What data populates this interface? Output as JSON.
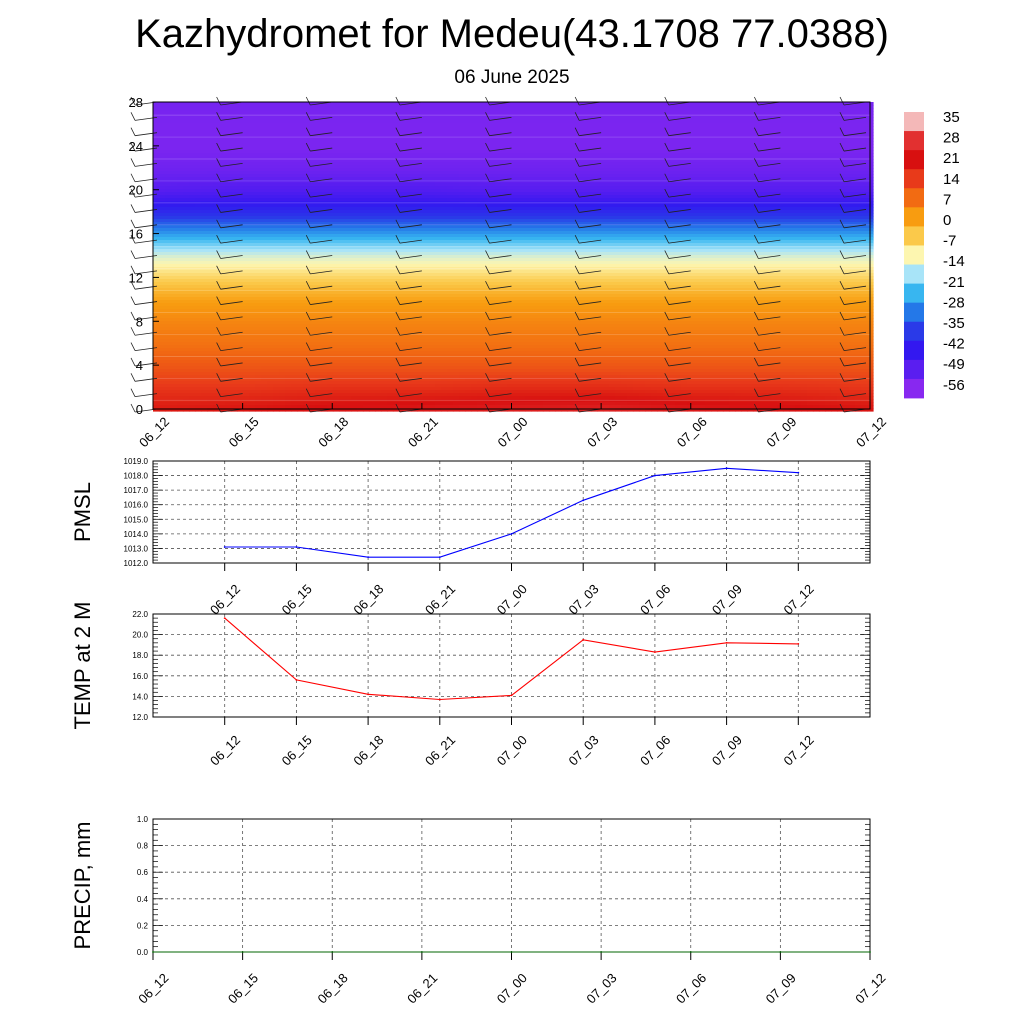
{
  "title": "Kazhydromet for Medeu(43.1708 77.0388)",
  "subtitle": "06 June 2025",
  "chart_data": [
    {
      "type": "heatmap",
      "name": "vertical-section",
      "x_categories": [
        "06_12",
        "06_15",
        "06_18",
        "06_21",
        "07_00",
        "07_03",
        "07_06",
        "07_09",
        "07_12"
      ],
      "y_ticks": [
        "0",
        "4",
        "8",
        "12",
        "16",
        "20",
        "24",
        "28"
      ],
      "ylim": [
        0,
        28
      ],
      "levels": [
        0,
        2,
        4,
        6,
        8,
        10,
        12,
        14,
        16,
        18,
        20,
        22,
        24,
        26,
        28
      ],
      "values": [
        [
          22,
          23,
          25,
          26,
          27,
          28,
          26,
          25,
          23
        ],
        [
          17,
          17,
          18,
          18,
          19,
          19,
          18,
          18,
          17
        ],
        [
          12,
          12,
          12,
          12,
          12,
          12,
          12,
          12,
          12
        ],
        [
          8,
          8,
          8,
          8,
          8,
          8,
          8,
          8,
          8
        ],
        [
          5,
          5,
          5,
          5,
          5,
          5,
          5,
          5,
          5
        ],
        [
          1,
          1,
          1,
          1,
          1,
          1,
          1,
          1,
          1
        ],
        [
          -7,
          -7,
          -7,
          -7,
          -7,
          -7,
          -7,
          -7,
          -7
        ],
        [
          -16,
          -16,
          -16,
          -16,
          -16,
          -16,
          -16,
          -16,
          -16
        ],
        [
          -30,
          -30,
          -30,
          -30,
          -30,
          -30,
          -30,
          -30,
          -30
        ],
        [
          -45,
          -45,
          -45,
          -45,
          -45,
          -45,
          -45,
          -45,
          -45
        ],
        [
          -56,
          -55,
          -55,
          -55,
          -56,
          -56,
          -56,
          -56,
          -56
        ],
        [
          -60,
          -60,
          -60,
          -60,
          -60,
          -60,
          -60,
          -60,
          -60
        ],
        [
          -62,
          -62,
          -62,
          -62,
          -62,
          -62,
          -62,
          -62,
          -62
        ],
        [
          -62,
          -62,
          -62,
          -62,
          -62,
          -62,
          -62,
          -62,
          -62
        ],
        [
          -61,
          -61,
          -61,
          -61,
          -61,
          -61,
          -61,
          -61,
          -61
        ]
      ],
      "colorbar_labels": [
        "35",
        "28",
        "21",
        "14",
        "7",
        "0",
        "-7",
        "-14",
        "-21",
        "-28",
        "-35",
        "-42",
        "-49",
        "-56"
      ],
      "colorbar_colors": [
        "#f4b8b8",
        "#e23030",
        "#d81010",
        "#e83a1a",
        "#f26b12",
        "#f89c10",
        "#fbc94a",
        "#fdf6b0",
        "#a8e4f8",
        "#38b6f0",
        "#2478e8",
        "#2a3ae8",
        "#3318f0",
        "#5a1ef0",
        "#8828f0"
      ]
    },
    {
      "type": "line",
      "name": "PMSL",
      "ylabel": "PMSL",
      "categories": [
        "06_12",
        "06_15",
        "06_18",
        "06_21",
        "07_00",
        "07_03",
        "07_06",
        "07_09",
        "07_12"
      ],
      "values": [
        1013.1,
        1013.1,
        1012.4,
        1012.4,
        1014.0,
        1016.3,
        1018.0,
        1018.5,
        1018.2
      ],
      "yticks": [
        "1012.0",
        "1013.0",
        "1014.0",
        "1015.0",
        "1016.0",
        "1017.0",
        "1018.0",
        "1019.0"
      ],
      "ylim": [
        1012.0,
        1019.0
      ],
      "color": "#0000ff",
      "grid": true
    },
    {
      "type": "line",
      "name": "TEMP",
      "ylabel": "TEMP at 2 M",
      "categories": [
        "06_12",
        "06_15",
        "06_18",
        "06_21",
        "07_00",
        "07_03",
        "07_06",
        "07_09",
        "07_12"
      ],
      "values": [
        21.6,
        15.6,
        14.2,
        13.7,
        14.1,
        19.5,
        18.3,
        19.2,
        19.1
      ],
      "yticks": [
        "12.0",
        "14.0",
        "16.0",
        "18.0",
        "20.0",
        "22.0"
      ],
      "ylim": [
        12.0,
        22.0
      ],
      "color": "#ff0000",
      "grid": true
    },
    {
      "type": "line",
      "name": "PRECIP",
      "ylabel": "PRECIP, mm",
      "categories": [
        "06_12",
        "06_15",
        "06_18",
        "06_21",
        "07_00",
        "07_03",
        "07_06",
        "07_09",
        "07_12"
      ],
      "values": [
        0,
        0,
        0,
        0,
        0,
        0,
        0,
        0,
        0
      ],
      "yticks": [
        "0.0",
        "0.2",
        "0.4",
        "0.6",
        "0.8",
        "1.0"
      ],
      "ylim": [
        0.0,
        1.0
      ],
      "color": "#006400",
      "grid": true
    }
  ]
}
